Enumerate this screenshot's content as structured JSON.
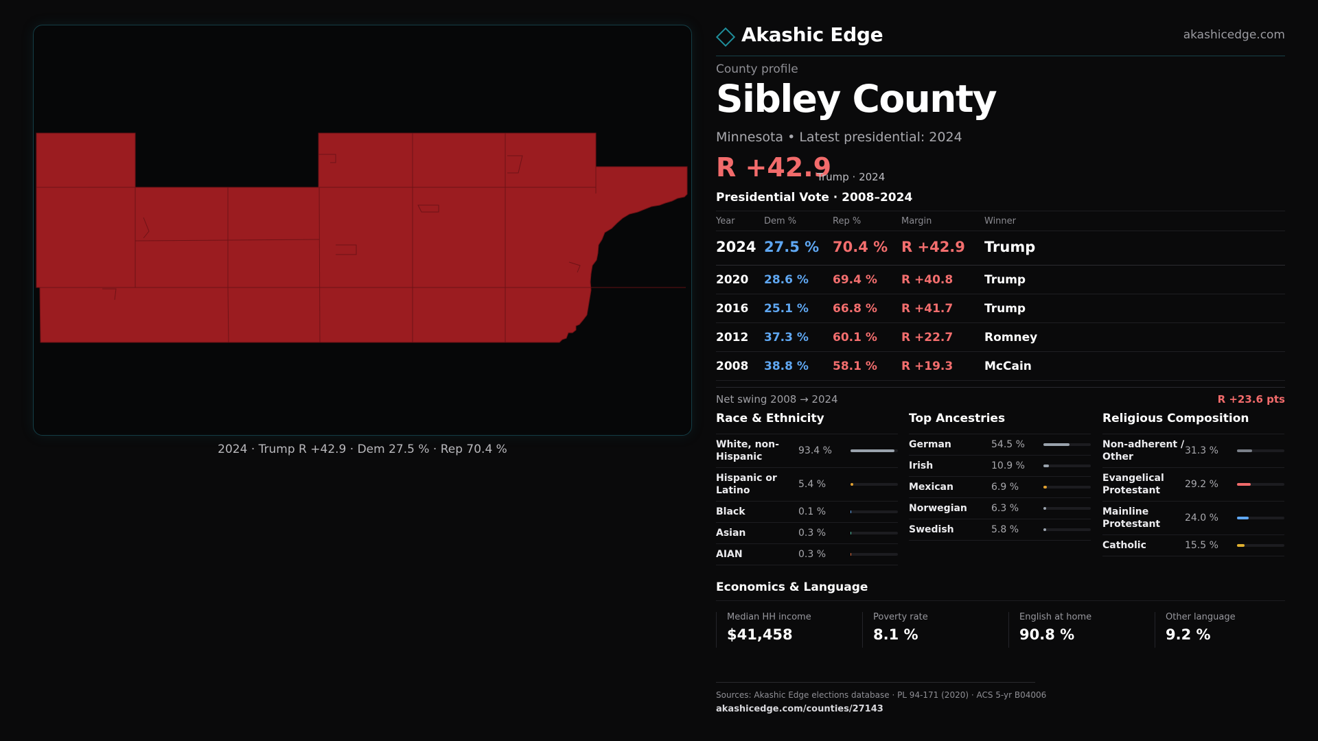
{
  "map": {
    "fill_color": "#9b1c20",
    "caption": "2024 · Trump R +42.9 · Dem 27.5 % · Rep 70.4 %"
  },
  "brand": {
    "name": "Akashic Edge",
    "url": "akashicedge.com"
  },
  "header": {
    "eyebrow": "County profile",
    "title": "Sibley County",
    "subtitle": "Minnesota • Latest presidential: 2024",
    "margin": "R +42.9",
    "margin_note": "Trump · 2024"
  },
  "vote": {
    "title": "Presidential Vote · 2008–2024",
    "headers": {
      "year": "Year",
      "dem": "Dem %",
      "rep": "Rep %",
      "margin": "Margin",
      "winner": "Winner"
    },
    "rows": [
      {
        "year": "2024",
        "dem": "27.5 %",
        "rep": "70.4 %",
        "margin": "R +42.9",
        "winner": "Trump"
      },
      {
        "year": "2020",
        "dem": "28.6 %",
        "rep": "69.4 %",
        "margin": "R +40.8",
        "winner": "Trump"
      },
      {
        "year": "2016",
        "dem": "25.1 %",
        "rep": "66.8 %",
        "margin": "R +41.7",
        "winner": "Trump"
      },
      {
        "year": "2012",
        "dem": "37.3 %",
        "rep": "60.1 %",
        "margin": "R +22.7",
        "winner": "Romney"
      },
      {
        "year": "2008",
        "dem": "38.8 %",
        "rep": "58.1 %",
        "margin": "R +19.3",
        "winner": "McCain"
      }
    ],
    "swing_label": "Net swing 2008 → 2024",
    "swing_value": "R +23.6 pts"
  },
  "race": {
    "title": "Race & Ethnicity",
    "rows": [
      {
        "label": "White, non-Hispanic",
        "value": "93.4 %",
        "pct": 93.4,
        "color": "#9aa3ad"
      },
      {
        "label": "Hispanic or Latino",
        "value": "5.4 %",
        "pct": 5.4,
        "color": "#e0a030"
      },
      {
        "label": "Black",
        "value": "0.1 %",
        "pct": 0.1,
        "color": "#5fa7f2"
      },
      {
        "label": "Asian",
        "value": "0.3 %",
        "pct": 0.3,
        "color": "#4cc0a0"
      },
      {
        "label": "AIAN",
        "value": "0.3 %",
        "pct": 0.3,
        "color": "#e06a3a"
      }
    ]
  },
  "ancestry": {
    "title": "Top Ancestries",
    "rows": [
      {
        "label": "German",
        "value": "54.5 %",
        "pct": 54.5,
        "color": "#9aa3ad"
      },
      {
        "label": "Irish",
        "value": "10.9 %",
        "pct": 10.9,
        "color": "#9aa3ad"
      },
      {
        "label": "Mexican",
        "value": "6.9 %",
        "pct": 6.9,
        "color": "#e0a030"
      },
      {
        "label": "Norwegian",
        "value": "6.3 %",
        "pct": 6.3,
        "color": "#9aa3ad"
      },
      {
        "label": "Swedish",
        "value": "5.8 %",
        "pct": 5.8,
        "color": "#9aa3ad"
      }
    ]
  },
  "religion": {
    "title": "Religious Composition",
    "rows": [
      {
        "label": "Non-adherent / Other",
        "value": "31.3 %",
        "pct": 31.3,
        "color": "#7a7f88"
      },
      {
        "label": "Evangelical Protestant",
        "value": "29.2 %",
        "pct": 29.2,
        "color": "#f06a6a"
      },
      {
        "label": "Mainline Protestant",
        "value": "24.0 %",
        "pct": 24.0,
        "color": "#5fa7f2"
      },
      {
        "label": "Catholic",
        "value": "15.5 %",
        "pct": 15.5,
        "color": "#e0b030"
      }
    ]
  },
  "economics": {
    "title": "Economics & Language",
    "items": [
      {
        "label": "Median HH income",
        "value": "$41,458"
      },
      {
        "label": "Poverty rate",
        "value": "8.1 %"
      },
      {
        "label": "English at home",
        "value": "90.8 %"
      },
      {
        "label": "Other language",
        "value": "9.2 %"
      }
    ]
  },
  "footer": {
    "sources": "Sources: Akashic Edge elections database · PL 94-171 (2020) · ACS 5-yr B04006",
    "link": "akashicedge.com/counties/27143"
  }
}
